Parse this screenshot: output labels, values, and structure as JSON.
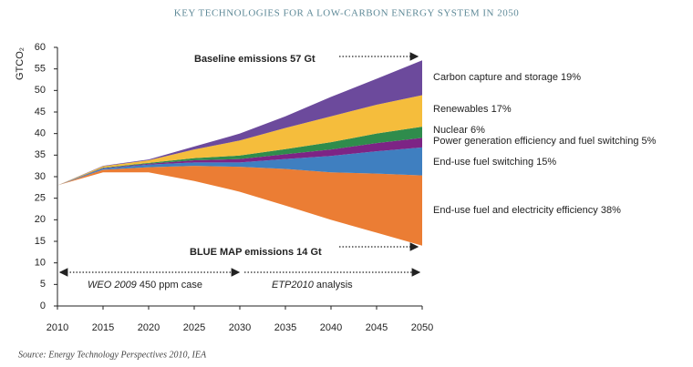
{
  "chart_data": {
    "type": "stacked_area",
    "title": "KEY TECHNOLOGIES FOR A LOW-CARBON ENERGY SYSTEM IN 2050",
    "y_label": "GTCO₂",
    "x": [
      2010,
      2015,
      2020,
      2025,
      2030,
      2035,
      2040,
      2045,
      2050
    ],
    "base_values": [
      28,
      31,
      31,
      29,
      26.5,
      23.3,
      20,
      17,
      14
    ],
    "series": [
      {
        "name": "End-use fuel and electricity efficiency 38%",
        "color": "#eb7d34",
        "values": [
          0,
          0.6,
          1.2,
          3.5,
          5.8,
          8.5,
          11,
          13.7,
          16.3
        ]
      },
      {
        "name": "End-use fuel switching 15%",
        "color": "#3f7fc0",
        "values": [
          0,
          0.3,
          0.6,
          0.8,
          1.0,
          2.3,
          3.8,
          5.2,
          6.5
        ]
      },
      {
        "name": "Power generation efficiency and fuel switching 5%",
        "color": "#7d2485",
        "values": [
          0,
          0.1,
          0.2,
          0.5,
          0.8,
          1.1,
          1.5,
          1.9,
          2.2
        ]
      },
      {
        "name": "Nuclear 6%",
        "color": "#2f8c4c",
        "values": [
          0,
          0.1,
          0.2,
          0.5,
          0.8,
          1.2,
          1.7,
          2.2,
          2.6
        ]
      },
      {
        "name": "Renewables 17%",
        "color": "#f5bd3c",
        "values": [
          0,
          0.3,
          0.6,
          2.0,
          3.5,
          4.9,
          6.0,
          6.7,
          7.3
        ]
      },
      {
        "name": "Carbon capture and storage 19%",
        "color": "#6c4a9c",
        "values": [
          0,
          0.1,
          0.2,
          0.7,
          1.6,
          2.7,
          4.5,
          6.0,
          8.1
        ]
      }
    ],
    "annotations": [
      "Baseline emissions 57 Gt",
      "BLUE MAP emissions 14 Gt",
      "WEO 2009",
      " 450 ppm case",
      "ETP2010",
      " analysis"
    ],
    "source": "Source: Energy Technology Perspectives 2010, IEA",
    "xlim": [
      2010,
      2050
    ],
    "xticks": [
      2010,
      2015,
      2020,
      2025,
      2030,
      2035,
      2040,
      2045,
      2050
    ],
    "ylim": [
      0,
      60
    ],
    "yticks": [
      0,
      5,
      10,
      15,
      20,
      25,
      30,
      35,
      40,
      45,
      50,
      55,
      60
    ]
  }
}
